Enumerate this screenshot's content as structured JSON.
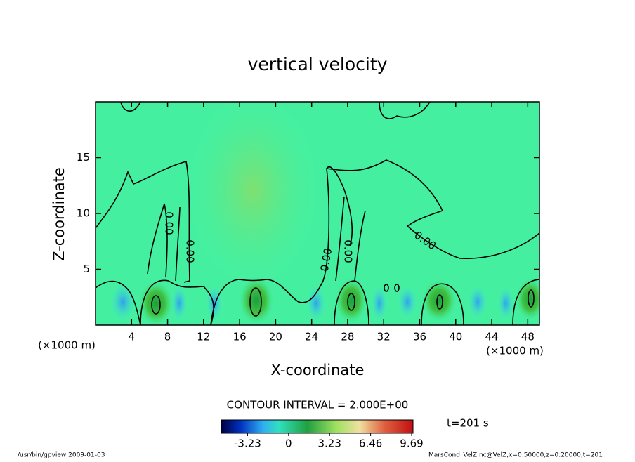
{
  "chart_data": {
    "type": "contour",
    "title": "vertical velocity",
    "x_label": "X-coordinate",
    "y_label": "Z-coordinate",
    "x_unit_label_left": "(×1000 m)",
    "x_unit_label_right": "(×1000 m)",
    "xlim": [
      0,
      49.3
    ],
    "ylim": [
      0,
      20
    ],
    "xticks": [
      4,
      8,
      12,
      16,
      20,
      24,
      28,
      32,
      36,
      40,
      44,
      48
    ],
    "yticks": [
      5,
      10,
      15
    ],
    "contour_labels": [
      "0.00",
      "0.00",
      "0.00",
      "0.00",
      "0.00"
    ],
    "contour_interval": "CONTOUR INTERVAL = 2.000E+00",
    "colorbar_lim": [
      -5.3,
      9.8
    ],
    "colorbar_ticks": [
      -3.23,
      0,
      3.23,
      6.46,
      9.69
    ],
    "time_label": "t=201 s",
    "footer_left": "/usr/bin/gpview   2009-01-03",
    "footer_right": "MarsCond_VelZ.nc@VelZ,x=0:50000,z=0:20000,t=201"
  }
}
